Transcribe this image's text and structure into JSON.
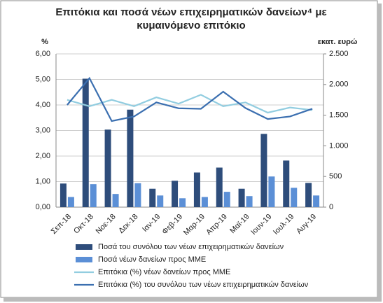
{
  "chart_data": {
    "type": "bar",
    "title": [
      "Επιτόκια και ποσά νέων επιχειρηματικών δανείων⁴ με",
      "κυμαινόμενο επιτόκιο"
    ],
    "ylabel": "%",
    "y2label": "εκατ. ευρώ",
    "categories": [
      "Σεπ-18",
      "Οκτ-18",
      "Νοε-18",
      "Δεκ-18",
      "Ιαν-19",
      "Φεβ-19",
      "Μαρ-19",
      "Απρ-19",
      "Μαϊ-19",
      "Ιουν-19",
      "Ιουλ-19",
      "Αυγ-19"
    ],
    "ylim": [
      0,
      6
    ],
    "yticks": [
      {
        "value": 0,
        "label": "0,00"
      },
      {
        "value": 1,
        "label": "1,00"
      },
      {
        "value": 2,
        "label": "2,00"
      },
      {
        "value": 3,
        "label": "3,00"
      },
      {
        "value": 4,
        "label": "4,00"
      },
      {
        "value": 5,
        "label": "5,00"
      },
      {
        "value": 6,
        "label": "6,00"
      }
    ],
    "y2lim": [
      0,
      2500
    ],
    "y2ticks": [
      0,
      500,
      {
        "value": 1000,
        "label": "1.000"
      },
      {
        "value": 1500,
        "label": "1.500"
      },
      {
        "value": 2000,
        "label": "2.000"
      },
      {
        "value": 2500,
        "label": "2.500"
      }
    ],
    "grid": true,
    "series": [
      {
        "name": "Ποσά του συνόλου των νέων επιχειρηματικών δανείων",
        "type": "bar",
        "axis": "y2",
        "color": "#2e4d7b",
        "values": [
          385,
          2095,
          1265,
          1590,
          300,
          430,
          565,
          645,
          300,
          1195,
          760,
          395
        ]
      },
      {
        "name": "Ποσά νέων δανείων προς ΜΜΕ",
        "type": "bar",
        "axis": "y2",
        "color": "#5b8fd6",
        "values": [
          165,
          375,
          215,
          390,
          190,
          145,
          165,
          250,
          180,
          500,
          315,
          190
        ]
      },
      {
        "name": "Επιτόκια (%) νέων δανείων προς ΜΜΕ",
        "type": "line",
        "axis": "y",
        "color": "#92cde0",
        "values": [
          4.2,
          3.95,
          4.2,
          3.95,
          4.3,
          4.05,
          4.4,
          3.95,
          4.1,
          3.7,
          3.9,
          3.8
        ]
      },
      {
        "name": "Επιτόκια (%) του συνόλου των νέων επιχειρηματικών δανείων",
        "type": "line",
        "axis": "y",
        "color": "#3b6fb0",
        "values": [
          4.0,
          5.05,
          3.37,
          3.55,
          4.1,
          3.87,
          3.85,
          4.52,
          3.88,
          3.45,
          3.55,
          3.85
        ]
      }
    ]
  }
}
